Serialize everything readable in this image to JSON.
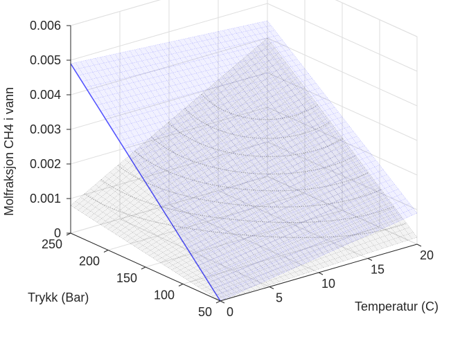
{
  "chart_data": {
    "type": "surface3d",
    "title": "",
    "xlabel": "Temperatur (C)",
    "ylabel": "Trykk (Bar)",
    "zlabel": "Molfraksjon CH4 i vann",
    "x_ticks": [
      "0",
      "5",
      "10",
      "15",
      "20"
    ],
    "y_ticks": [
      "50",
      "100",
      "150",
      "200",
      "250"
    ],
    "z_ticks": [
      "0",
      "0.001",
      "0.002",
      "0.003",
      "0.004",
      "0.005",
      "0.006"
    ],
    "xlim": [
      0,
      20
    ],
    "ylim": [
      50,
      250
    ],
    "zlim": [
      0,
      0.006
    ],
    "grid": true,
    "series": [
      {
        "color": "#3b3bff",
        "corner_values": [
          {
            "x": 0,
            "y": 50,
            "z": 0.0
          },
          {
            "x": 0,
            "y": 250,
            "z": 0.0049
          },
          {
            "x": 20,
            "y": 250,
            "z": 0.0045
          },
          {
            "x": 20,
            "y": 50,
            "z": 0.0009
          }
        ]
      },
      {
        "color": "#111111",
        "corner_values": [
          {
            "x": 0,
            "y": 250,
            "z": 0.0008
          },
          {
            "x": 20,
            "y": 250,
            "z": 0.004
          },
          {
            "x": 20,
            "y": 50,
            "z": 0.0002
          },
          {
            "x": 0,
            "y": 50,
            "z": 0.0
          }
        ]
      }
    ]
  }
}
